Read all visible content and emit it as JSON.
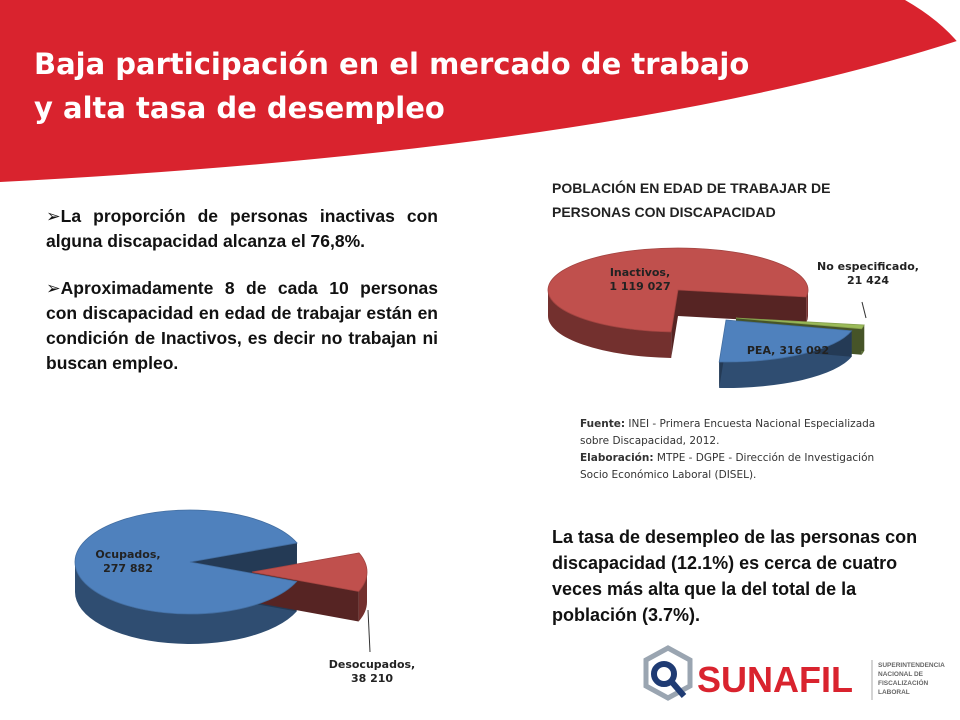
{
  "header": {
    "title": [
      "Baja participación en el mercado de trabajo",
      "y alta tasa de desempleo"
    ]
  },
  "bullets": [
    "La proporción de personas inactivas con alguna discapacidad alcanza el 76,8%.",
    "Aproximadamente 8 de cada 10 personas con discapacidad en edad de trabajar están en condición de Inactivos, es decir no trabajan ni buscan empleo."
  ],
  "chart_data": [
    {
      "type": "pie",
      "title": "POBLACIÓN EN EDAD DE TRABAJAR DE PERSONAS CON DISCAPACIDAD",
      "categories": [
        "Inactivos,",
        "No especificado,",
        "PEA,"
      ],
      "values": [
        1119027,
        21424,
        316092
      ],
      "value_labels": [
        "1 119 027",
        "21 424",
        "316 092"
      ],
      "colors": [
        "#c0504d",
        "#9bbb59",
        "#4f81bd"
      ]
    },
    {
      "type": "pie",
      "categories": [
        "Ocupados,",
        "Desocupados,"
      ],
      "values": [
        277882,
        38210
      ],
      "value_labels": [
        "277 882",
        "38 210"
      ],
      "colors": [
        "#4f81bd",
        "#c0504d"
      ]
    }
  ],
  "source": [
    {
      "label": "Fuente:",
      "text": "INEI - Primera Encuesta Nacional Especializada sobre Discapacidad, 2012."
    },
    {
      "label": "Elaboración:",
      "text": "MTPE - DGPE - Dirección de Investigación Socio Económico Laboral (DISEL)."
    }
  ],
  "paragraph": "La tasa de desempleo de las personas con discapacidad (12.1%) es cerca de cuatro veces más alta que la del total de la población (3.7%).",
  "logo": {
    "name": "SUNAFIL",
    "subtitle": [
      "SUPERINTENDENCIA",
      "NACIONAL DE",
      "FISCALIZACIÓN",
      "LABORAL"
    ]
  }
}
